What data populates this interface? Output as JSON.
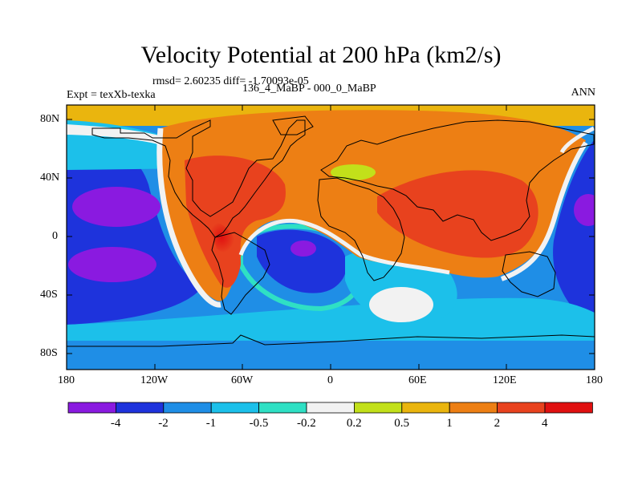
{
  "title": "Velocity Potential at 200 hPa (km2/s)",
  "stats": "rmsd= 2.60235 diff= -1.70093e-05",
  "left_label": "Expt = texXb-texka",
  "center_label": "136_4_MaBP - 000_0_MaBP",
  "right_label": "ANN",
  "lat_ticks": [
    "80N",
    "40N",
    "0",
    "40S",
    "80S"
  ],
  "lon_ticks": [
    "180",
    "120W",
    "60W",
    "0",
    "60E",
    "120E",
    "180"
  ],
  "colorbar": {
    "colors": [
      "#8a1ae0",
      "#1e33dc",
      "#1f8ee6",
      "#1cc0ea",
      "#2fe0c4",
      "#f2f2f2",
      "#c2e01a",
      "#eab50e",
      "#ed7f14",
      "#e8421e",
      "#e01010"
    ],
    "labels": [
      "-4",
      "-2",
      "-1",
      "-0.5",
      "-0.2",
      "0.2",
      "0.5",
      "1",
      "2",
      "4"
    ]
  }
}
